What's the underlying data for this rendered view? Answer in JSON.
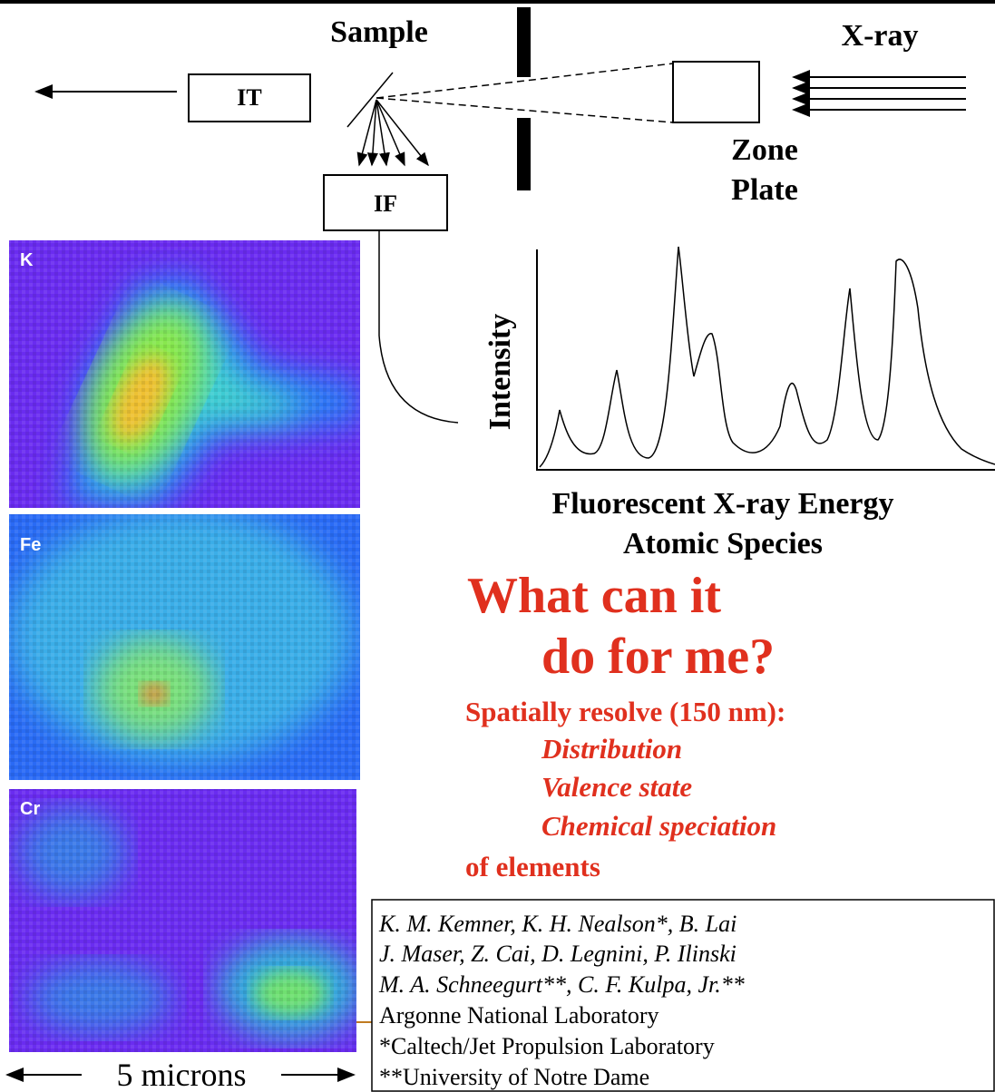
{
  "diagram": {
    "sample": "Sample",
    "xray": "X-ray",
    "it": "IT",
    "if": "IF",
    "zone_plate": [
      "Zone",
      "Plate"
    ]
  },
  "spectrum": {
    "y_label": "Intensity",
    "x_label": [
      "Fluorescent X-ray Energy",
      "Atomic Species"
    ]
  },
  "maps": {
    "panels": [
      "K",
      "Fe",
      "Cr"
    ],
    "scale_label": "5 microns"
  },
  "headline": [
    "What can it",
    "do for me?"
  ],
  "body": {
    "intro": "Spatially resolve (150 nm):",
    "items": [
      "Distribution",
      "Valence state",
      "Chemical speciation"
    ],
    "outro": "of elements"
  },
  "credits": {
    "authors": [
      "K. M. Kemner, K. H. Nealson*, B. Lai",
      "J. Maser, Z. Cai, D. Legnini, P. Ilinski",
      "M. A. Schneegurt**, C. F. Kulpa, Jr.**"
    ],
    "affiliations": [
      "Argonne National Laboratory",
      "*Caltech/Jet Propulsion Laboratory",
      "**University of Notre Dame"
    ]
  }
}
